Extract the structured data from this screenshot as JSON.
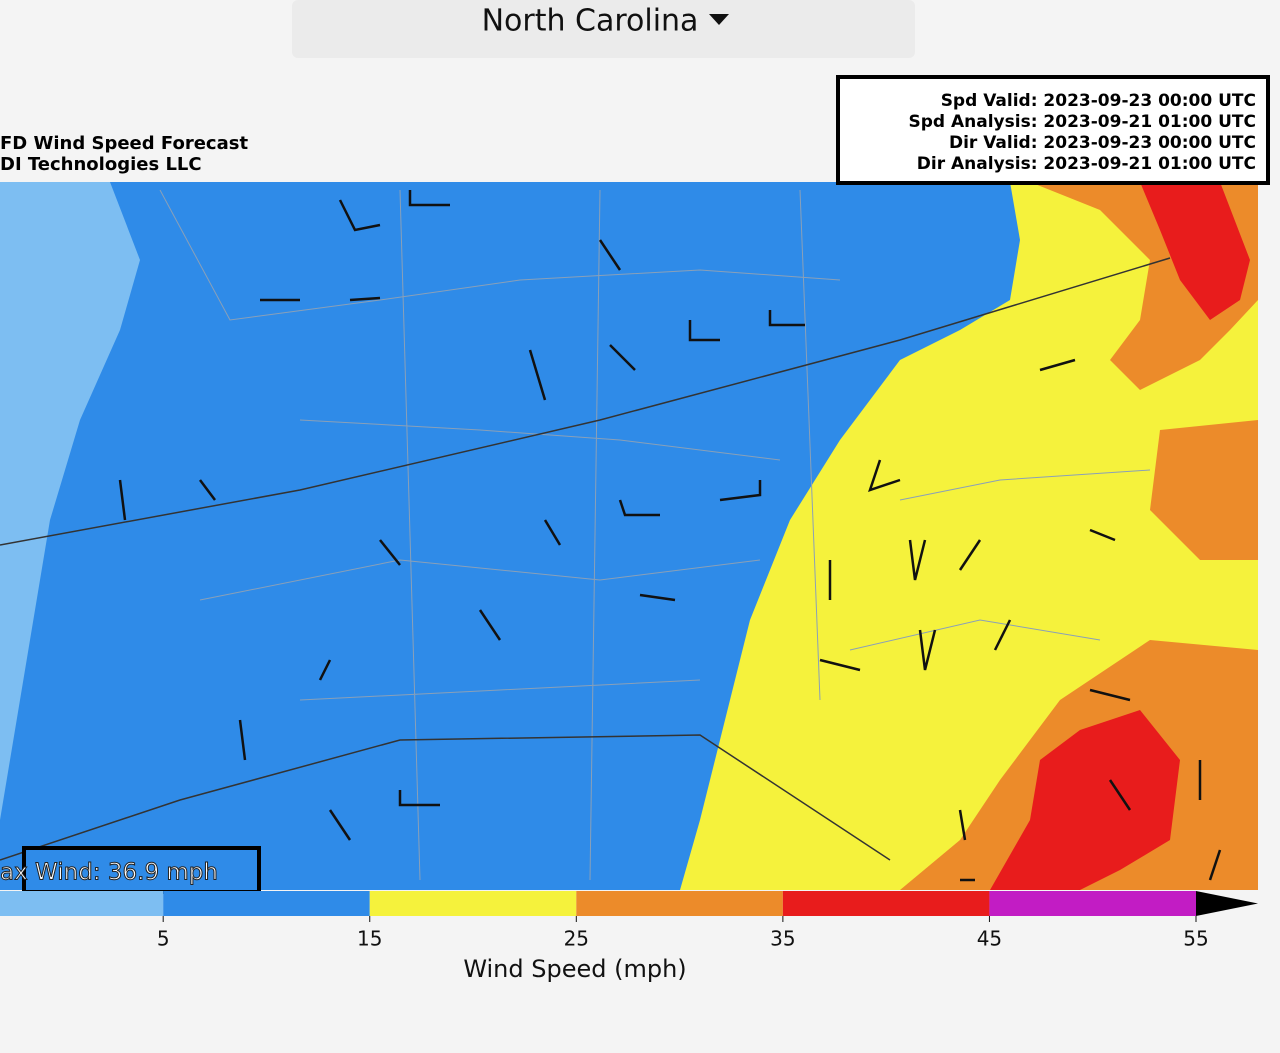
{
  "header": {
    "title": "North Carolina"
  },
  "map": {
    "title_lines": [
      "FD Wind Speed Forecast",
      "DI Technologies LLC"
    ],
    "info_lines": [
      "Spd Valid: 2023-09-23 00:00 UTC",
      "Spd Analysis: 2023-09-21 01:00 UTC",
      "Dir Valid: 2023-09-23 00:00 UTC",
      "Dir Analysis: 2023-09-21 01:00 UTC"
    ],
    "max_wind_label": "ax Wind: 36.9 mph"
  },
  "colorbar": {
    "label": "Wind Speed (mph)",
    "lim": [
      -2.9,
      55
    ],
    "ticks": [
      5,
      15,
      25,
      35,
      45,
      55
    ],
    "colors": [
      "#7dbef2",
      "#2f8be8",
      "#f5f23c",
      "#ec8b2a",
      "#e81c1c",
      "#c21cc4"
    ]
  }
}
